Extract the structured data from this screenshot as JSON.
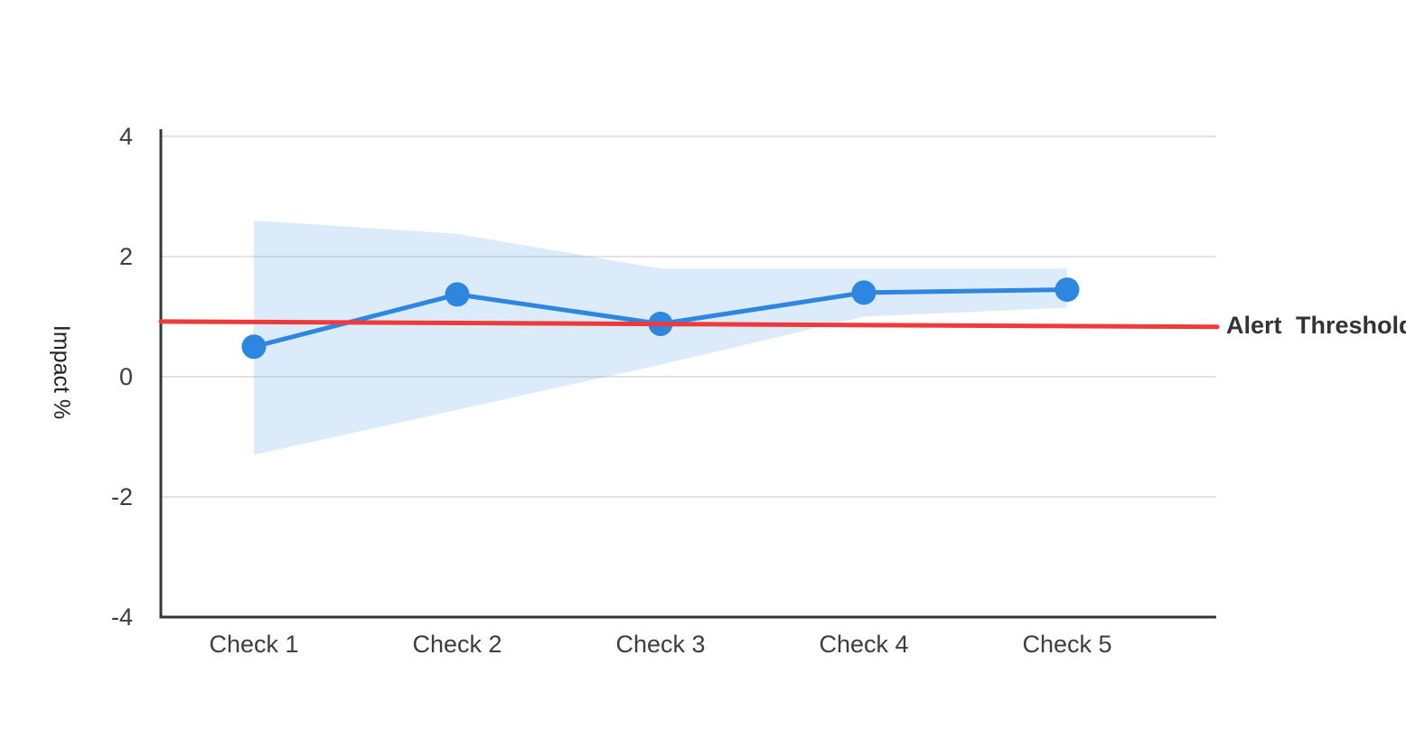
{
  "page": {
    "background": "#ffffff"
  },
  "chart_data": {
    "type": "line",
    "title": "",
    "xlabel": "",
    "ylabel": "Impact %",
    "categories": [
      "Check 1",
      "Check 2",
      "Check 3",
      "Check 4",
      "Check 5"
    ],
    "series": [
      {
        "name": "Impact",
        "values": [
          0.5,
          1.37,
          0.88,
          1.4,
          1.45
        ],
        "color": "#2d86e0",
        "marker": "circle",
        "marker_radius": 13.5,
        "line_width": 5
      }
    ],
    "confidence_band": {
      "upper": [
        2.6,
        2.38,
        1.8,
        1.8,
        1.8
      ],
      "lower": [
        -1.3,
        -0.55,
        0.2,
        1.0,
        1.15
      ],
      "color": "#2d86e0",
      "opacity": 0.17
    },
    "threshold": {
      "label": "Alert Threshold",
      "start_value": 0.92,
      "end_value": 0.83,
      "color": "#ee3a3a",
      "line_width": 5
    },
    "ylim": [
      -4,
      4
    ],
    "yticks": [
      {
        "value": 4,
        "label": "4"
      },
      {
        "value": 2,
        "label": "2"
      },
      {
        "value": 0,
        "label": "0"
      },
      {
        "value": -2,
        "label": "-2"
      },
      {
        "value": -4,
        "label": "-4"
      }
    ],
    "grid": "horizontal",
    "legend_position": "none",
    "colors": {
      "grid": "#e3e3e3",
      "axis": "#363636",
      "tick_text": "#3d3d3d",
      "threshold_text": "#333333"
    }
  }
}
